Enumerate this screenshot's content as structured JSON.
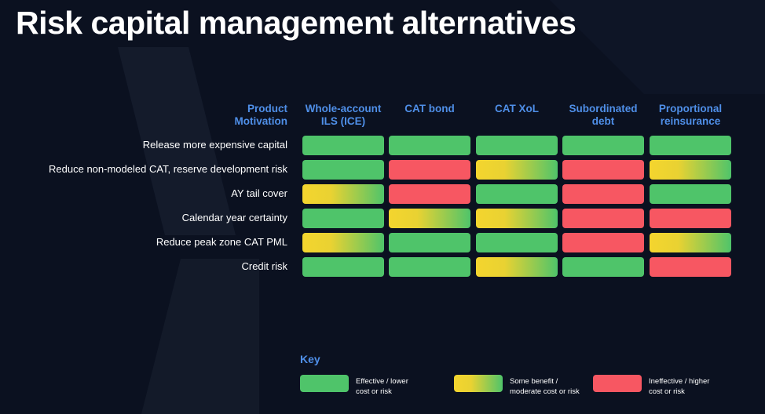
{
  "title": "Risk capital management alternatives",
  "header": {
    "corner": [
      "Product",
      "Motivation"
    ],
    "columns": [
      {
        "lines": [
          "Whole-account",
          "ILS (ICE)"
        ]
      },
      {
        "lines": [
          "CAT bond"
        ]
      },
      {
        "lines": [
          "CAT XoL"
        ]
      },
      {
        "lines": [
          "Subordinated",
          "debt"
        ]
      },
      {
        "lines": [
          "Proportional",
          "reinsurance"
        ]
      }
    ]
  },
  "rows": [
    {
      "label": "Release more expensive capital",
      "ratings": [
        "effective",
        "effective",
        "effective",
        "effective",
        "effective"
      ]
    },
    {
      "label": "Reduce non-modeled CAT, reserve development risk",
      "ratings": [
        "effective",
        "ineffective",
        "some",
        "ineffective",
        "some"
      ]
    },
    {
      "label": "AY tail cover",
      "ratings": [
        "some",
        "ineffective",
        "effective",
        "ineffective",
        "effective"
      ]
    },
    {
      "label": "Calendar year certainty",
      "ratings": [
        "effective",
        "some",
        "some",
        "ineffective",
        "ineffective"
      ]
    },
    {
      "label": "Reduce peak zone CAT PML",
      "ratings": [
        "some",
        "effective",
        "effective",
        "ineffective",
        "some"
      ]
    },
    {
      "label": "Credit risk",
      "ratings": [
        "effective",
        "effective",
        "some",
        "effective",
        "ineffective"
      ]
    }
  ],
  "key": {
    "title": "Key",
    "items": [
      {
        "rating": "effective",
        "lines": [
          "Effective / lower",
          "cost or risk"
        ]
      },
      {
        "rating": "some",
        "lines": [
          "Some benefit /",
          "moderate cost or risk"
        ]
      },
      {
        "rating": "ineffective",
        "lines": [
          "Ineffective / higher",
          "cost or risk"
        ]
      }
    ]
  },
  "colors": {
    "background": "#0b1120",
    "effective": "#4fc46a",
    "some": "#f4d52e",
    "ineffective": "#f75762",
    "accent": "#4f8fe8"
  }
}
